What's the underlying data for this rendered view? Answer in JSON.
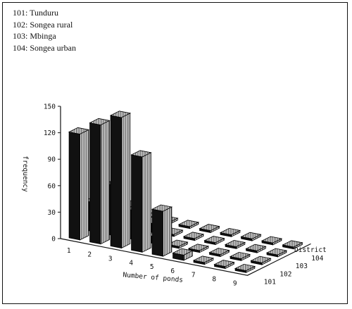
{
  "legend": [
    {
      "code": "101",
      "label": "Tunduru"
    },
    {
      "code": "102",
      "label": "Songea rural"
    },
    {
      "code": "103",
      "label": "Mbinga"
    },
    {
      "code": "104",
      "label": "Songea urban"
    }
  ],
  "chart_data": {
    "type": "bar3d",
    "xlabel": "Number of ponds",
    "ylabel": "frequency",
    "zlabel": "District",
    "x_categories": [
      "1",
      "2",
      "3",
      "4",
      "5",
      "6",
      "7",
      "8",
      "9"
    ],
    "z_categories": [
      "101",
      "102",
      "103",
      "104"
    ],
    "yticks": [
      "0",
      "30",
      "60",
      "90",
      "120",
      "150"
    ],
    "ylim": [
      0,
      150
    ],
    "series": [
      {
        "district": "101",
        "values": [
          120,
          135,
          148,
          108,
          51,
          6,
          0,
          0,
          0
        ]
      },
      {
        "district": "102",
        "values": [
          33,
          57,
          33,
          8,
          0,
          0,
          0,
          0,
          0
        ]
      },
      {
        "district": "103",
        "values": [
          11,
          24,
          10,
          0,
          0,
          0,
          0,
          0,
          0
        ]
      },
      {
        "district": "104",
        "values": [
          0,
          0,
          0,
          0,
          0,
          0,
          0,
          0,
          0
        ]
      }
    ],
    "colors": {
      "front": "#111111",
      "side": "#c8c8c8",
      "top": "#d8d8d8",
      "floor": "#222222"
    }
  }
}
